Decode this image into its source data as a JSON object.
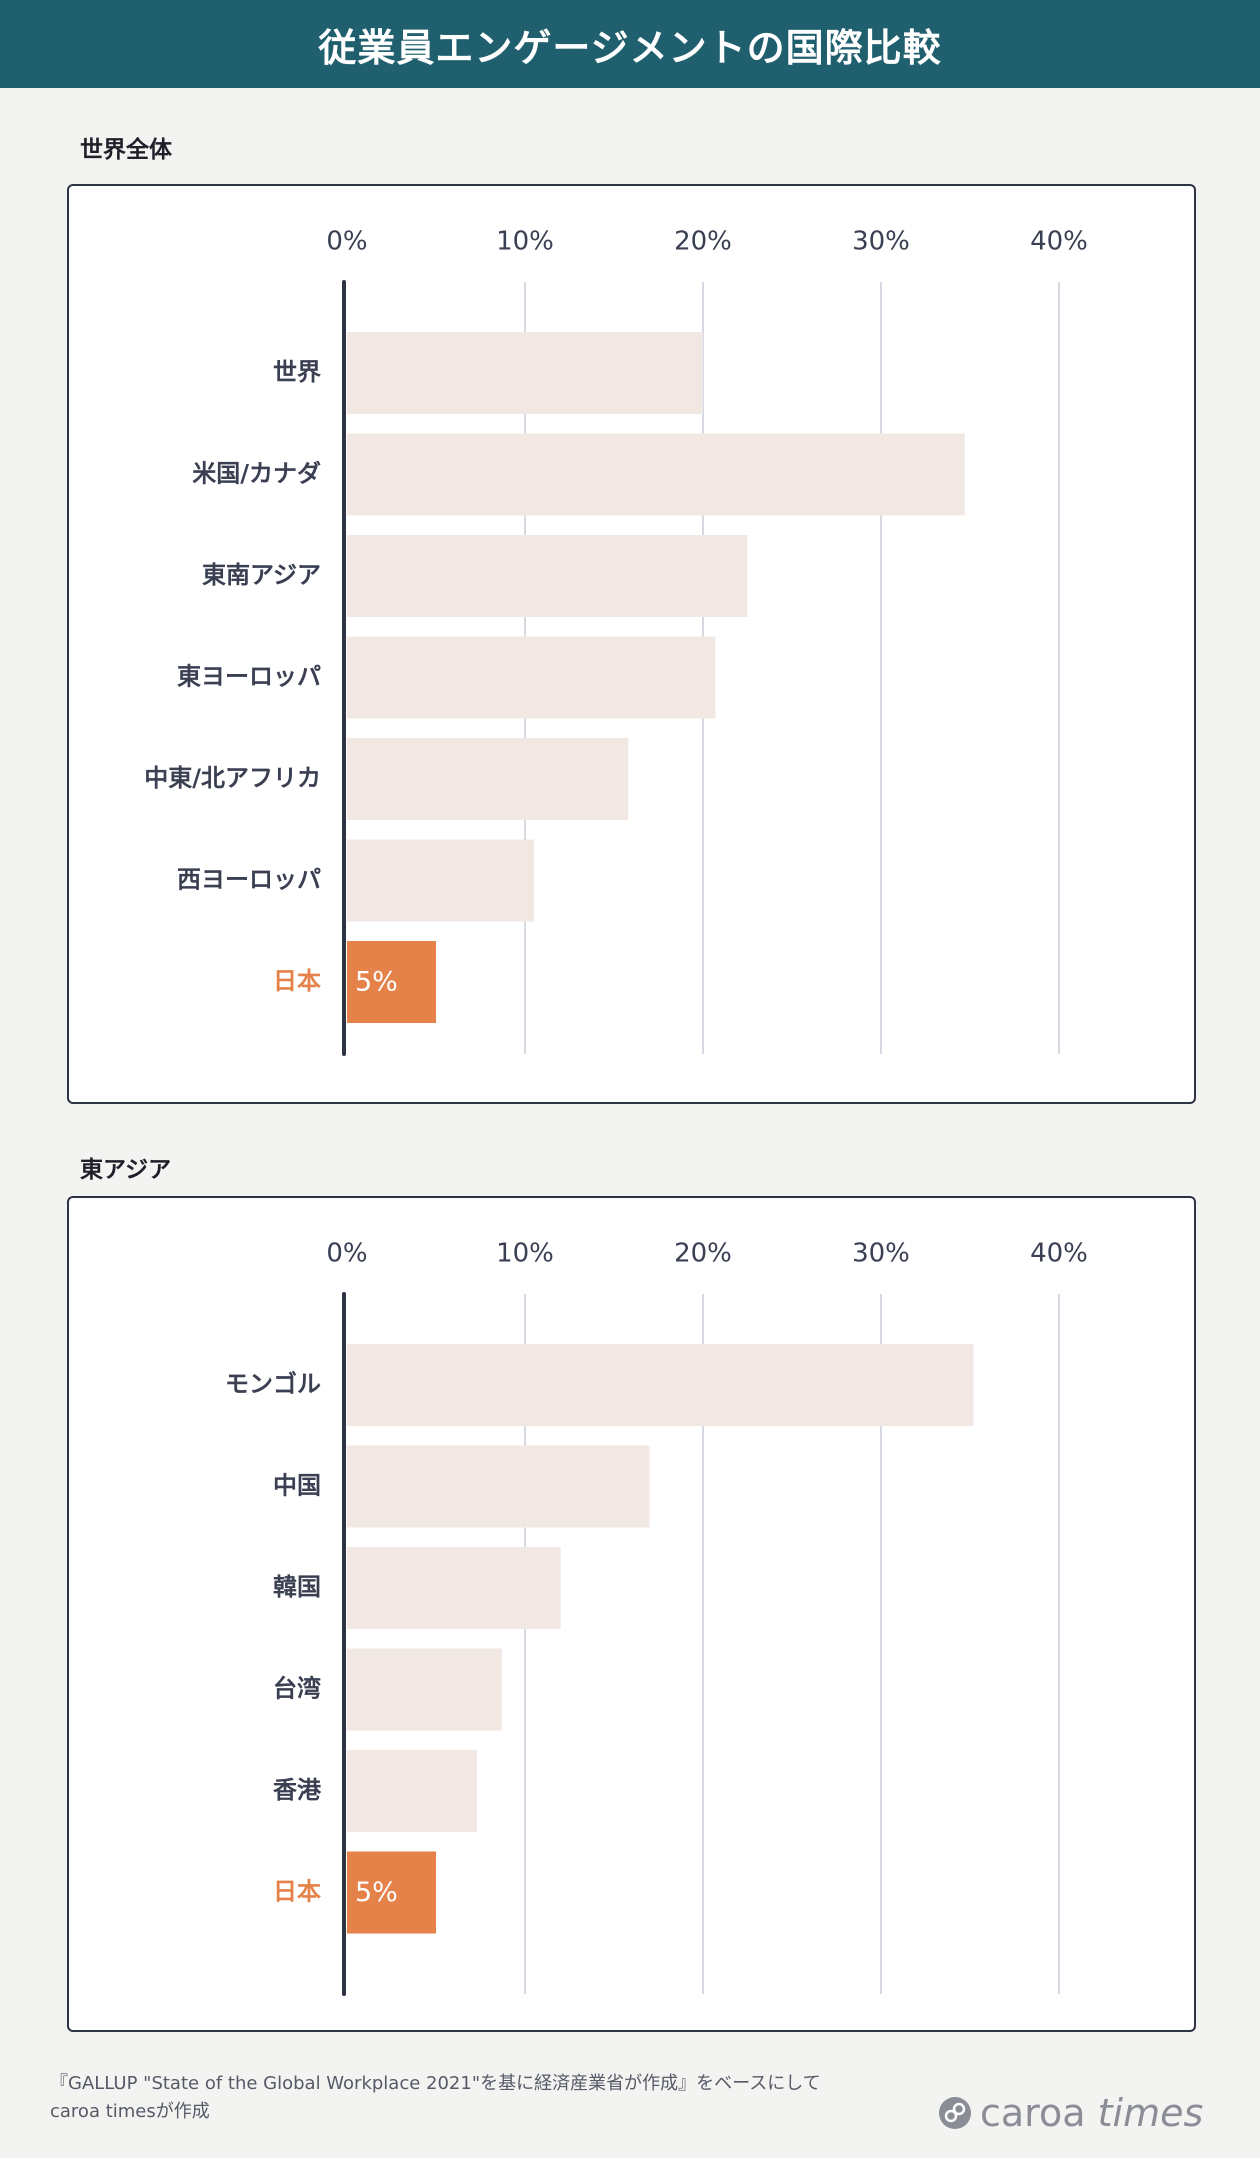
{
  "title": "従業員エンゲージメントの国際比較",
  "colors": {
    "header": "#1f5f6e",
    "bar": "#f2e8e3",
    "highlight": "#e4824a",
    "grid": "#d7d9e2",
    "axis": "#2f3445"
  },
  "chart_data": [
    {
      "type": "bar",
      "orientation": "horizontal",
      "title": "世界全体",
      "categories": [
        "世界",
        "米国/カナダ",
        "東南アジア",
        "東ヨーロッパ",
        "中東/北アフリカ",
        "西ヨーロッパ",
        "日本"
      ],
      "values": [
        20,
        34.7,
        22.5,
        20.7,
        15.8,
        10.5,
        5
      ],
      "highlight": "日本",
      "value_labels": {
        "日本": "5%"
      },
      "xlim": [
        0,
        45
      ],
      "ticks": [
        0,
        10,
        20,
        30,
        40
      ],
      "tick_labels": [
        "0%",
        "10%",
        "20%",
        "30%",
        "40%"
      ],
      "grid": true
    },
    {
      "type": "bar",
      "orientation": "horizontal",
      "title": "東アジア",
      "categories": [
        "モンゴル",
        "中国",
        "韓国",
        "台湾",
        "香港",
        "日本"
      ],
      "values": [
        35.2,
        17,
        12,
        8.7,
        7.3,
        5
      ],
      "highlight": "日本",
      "value_labels": {
        "日本": "5%"
      },
      "xlim": [
        0,
        45
      ],
      "ticks": [
        0,
        10,
        20,
        30,
        40
      ],
      "tick_labels": [
        "0%",
        "10%",
        "20%",
        "30%",
        "40%"
      ],
      "grid": true
    }
  ],
  "footer": {
    "source_note": "『GALLUP \"State of the Global Workplace 2021\"を基に経済産業省が作成』をベースにしてcaroa timesが作成",
    "logo_text_a": "caroa",
    "logo_text_b": "times"
  }
}
